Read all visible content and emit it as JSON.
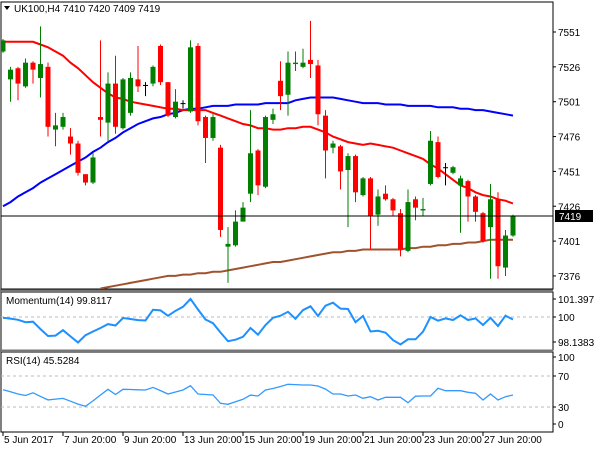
{
  "chart_data": [
    {
      "type": "candlestick",
      "title": "UK100,H4  7410 7420 7409 7419",
      "symbol": "UK100,H4",
      "ohlc_header": [
        "7410",
        "7420",
        "7409",
        "7419"
      ],
      "current_price_label": "7419",
      "current_price": 7419,
      "y_ticks": [
        "7551",
        "7526",
        "7501",
        "7476",
        "7451",
        "7426",
        "7401",
        "7376"
      ],
      "x_ticks": [
        "5 Jun 2017",
        "7 Jun 20:00",
        "9 Jun 20:00",
        "13 Jun 20:00",
        "15 Jun 20:00",
        "19 Jun 20:00",
        "21 Jun 20:00",
        "23 Jun 20:00",
        "27 Jun 20:00"
      ],
      "colors": {
        "bull": "#007f00",
        "bear": "#ff0000",
        "doji": "#000000",
        "ma_fast": "#ff0000",
        "ma_mid": "#0000ff",
        "ma_slow": "#a0522d"
      },
      "candles": [
        [
          7537,
          7546,
          7536,
          7545
        ],
        [
          7517,
          7526,
          7501,
          7524
        ],
        [
          7525,
          7526,
          7502,
          7514
        ],
        [
          7512,
          7532,
          7511,
          7529
        ],
        [
          7529,
          7530,
          7514,
          7524
        ],
        [
          7518,
          7555,
          7504,
          7528
        ],
        [
          7526,
          7529,
          7476,
          7483
        ],
        [
          7481,
          7493,
          7469,
          7484
        ],
        [
          7483,
          7493,
          7481,
          7490
        ],
        [
          7476,
          7482,
          7463,
          7471
        ],
        [
          7471,
          7473,
          7448,
          7450
        ],
        [
          7449,
          7449,
          7441,
          7443
        ],
        [
          7443,
          7464,
          7442,
          7461
        ],
        [
          7490,
          7545,
          7476,
          7488
        ],
        [
          7486,
          7522,
          7473,
          7514
        ],
        [
          7514,
          7534,
          7478,
          7483
        ],
        [
          7482,
          7518,
          7481,
          7517
        ],
        [
          7493,
          7522,
          7491,
          7518
        ],
        [
          7517,
          7541,
          7508,
          7512
        ],
        [
          7513,
          7515,
          7505,
          7513
        ],
        [
          7514,
          7527,
          7512,
          7526
        ],
        [
          7541,
          7542,
          7513,
          7515
        ],
        [
          7515,
          7515,
          7490,
          7491
        ],
        [
          7490,
          7510,
          7489,
          7501
        ],
        [
          7500,
          7502,
          7496,
          7500
        ],
        [
          7494,
          7545,
          7493,
          7540
        ],
        [
          7541,
          7543,
          7484,
          7487
        ],
        [
          7490,
          7491,
          7457,
          7475
        ],
        [
          7475,
          7492,
          7473,
          7490
        ],
        [
          7468,
          7470,
          7404,
          7409
        ],
        [
          7397,
          7411,
          7371,
          7399
        ],
        [
          7398,
          7423,
          7397,
          7415
        ],
        [
          7415,
          7429,
          7415,
          7425
        ],
        [
          7435,
          7495,
          7429,
          7464
        ],
        [
          7466,
          7467,
          7434,
          7441
        ],
        [
          7440,
          7491,
          7439,
          7490
        ],
        [
          7488,
          7496,
          7485,
          7492
        ],
        [
          7516,
          7530,
          7495,
          7505
        ],
        [
          7506,
          7537,
          7491,
          7529
        ],
        [
          7528,
          7537,
          7523,
          7529
        ],
        [
          7526,
          7539,
          7525,
          7529
        ],
        [
          7531,
          7559,
          7518,
          7528
        ],
        [
          7527,
          7531,
          7484,
          7492
        ],
        [
          7491,
          7495,
          7446,
          7466
        ],
        [
          7468,
          7473,
          7464,
          7471
        ],
        [
          7469,
          7470,
          7438,
          7451
        ],
        [
          7452,
          7464,
          7411,
          7462
        ],
        [
          7462,
          7463,
          7429,
          7436
        ],
        [
          7434,
          7447,
          7433,
          7446
        ],
        [
          7446,
          7447,
          7395,
          7419
        ],
        [
          7420,
          7438,
          7412,
          7433
        ],
        [
          7435,
          7441,
          7430,
          7431
        ],
        [
          7431,
          7432,
          7419,
          7423
        ],
        [
          7421,
          7424,
          7390,
          7395
        ],
        [
          7394,
          7438,
          7393,
          7429
        ],
        [
          7431,
          7433,
          7416,
          7425
        ],
        [
          7423,
          7432,
          7419,
          7424
        ],
        [
          7442,
          7480,
          7441,
          7473
        ],
        [
          7472,
          7476,
          7446,
          7447
        ],
        [
          7454,
          7457,
          7441,
          7454
        ],
        [
          7450,
          7455,
          7449,
          7454
        ],
        [
          7441,
          7448,
          7407,
          7446
        ],
        [
          7444,
          7445,
          7415,
          7433
        ],
        [
          7433,
          7434,
          7415,
          7422
        ],
        [
          7421,
          7422,
          7400,
          7401
        ],
        [
          7411,
          7442,
          7374,
          7431
        ],
        [
          7431,
          7436,
          7374,
          7383
        ],
        [
          7382,
          7409,
          7376,
          7405
        ],
        [
          7405,
          7420,
          7404,
          7419
        ]
      ],
      "ma_fast": [
        7544,
        7544,
        7544,
        7544,
        7544,
        7542,
        7540,
        7537,
        7534,
        7529,
        7525,
        7520,
        7515,
        7511,
        7507,
        7504,
        7503,
        7501,
        7500,
        7499,
        7498,
        7497,
        7496,
        7496,
        7495,
        7495,
        7495,
        7495,
        7493,
        7491,
        7489,
        7487,
        7485,
        7484,
        7482,
        7482,
        7481,
        7481,
        7482,
        7482,
        7483,
        7483,
        7481,
        7479,
        7476,
        7474,
        7472,
        7471,
        7470,
        7471,
        7470,
        7469,
        7468,
        7466,
        7464,
        7462,
        7460,
        7456,
        7453,
        7449,
        7445,
        7441,
        7439,
        7436,
        7434,
        7433,
        7431,
        7430,
        7428
      ],
      "ma_mid": [
        7426,
        7429,
        7433,
        7436,
        7439,
        7443,
        7446,
        7449,
        7452,
        7455,
        7458,
        7461,
        7465,
        7468,
        7472,
        7475,
        7479,
        7482,
        7485,
        7487,
        7489,
        7490,
        7492,
        7493,
        7495,
        7496,
        7496,
        7497,
        7498,
        7498,
        7498,
        7499,
        7499,
        7499,
        7499,
        7500,
        7500,
        7500,
        7500,
        7502,
        7503,
        7504,
        7504,
        7504,
        7504,
        7503,
        7502,
        7501,
        7500,
        7500,
        7500,
        7499,
        7499,
        7499,
        7498,
        7498,
        7498,
        7498,
        7497,
        7497,
        7497,
        7496,
        7496,
        7495,
        7495,
        7494,
        7493,
        7492,
        7491
      ],
      "ma_slow": [
        null,
        null,
        null,
        null,
        null,
        null,
        null,
        null,
        null,
        null,
        null,
        null,
        null,
        7367,
        7368,
        7369,
        7370,
        7371,
        7372,
        7373,
        7374,
        7375,
        7376,
        7376,
        7377,
        7377,
        7378,
        7378,
        7379,
        7379,
        7380,
        7381,
        7382,
        7383,
        7384,
        7385,
        7386,
        7386,
        7387,
        7388,
        7389,
        7390,
        7391,
        7392,
        7393,
        7393,
        7394,
        7394,
        7395,
        7395,
        7395,
        7395,
        7395,
        7395,
        7396,
        7396,
        7397,
        7397,
        7398,
        7398,
        7399,
        7399,
        7400,
        7400,
        7401,
        7402,
        7402,
        7402,
        7402
      ]
    },
    {
      "type": "line",
      "title": "Momentum(14) 99.8117",
      "y_ticks": [
        "101.397",
        "100",
        "98.1383"
      ],
      "reference_level": 100,
      "color": "#1e90ff",
      "values": [
        99.95,
        99.88,
        99.79,
        99.6,
        99.64,
        99.08,
        98.55,
        98.58,
        98.99,
        98.52,
        98.05,
        98.61,
        98.89,
        99.16,
        99.46,
        99.35,
        99.92,
        99.85,
        99.76,
        99.73,
        100.55,
        100.5,
        100.09,
        100.47,
        100.78,
        101.38,
        100.57,
        99.81,
        99.53,
        98.82,
        98.15,
        98.27,
        98.49,
        99.16,
        98.65,
        99.39,
        99.94,
        100.1,
        100.4,
        99.86,
        100.53,
        100.82,
        100.08,
        100.86,
        101.09,
        100.64,
        100.61,
        99.6,
        100.08,
        98.89,
        98.95,
        98.81,
        98.24,
        97.9,
        98.3,
        98.3,
        98.88,
        100.0,
        99.72,
        99.89,
        99.77,
        100.13,
        99.77,
        99.89,
        99.39,
        99.94,
        99.31,
        100.1,
        99.81
      ]
    },
    {
      "type": "line",
      "title": "RSI(14) 45.5284",
      "y_ticks": [
        "100",
        "70",
        "30",
        "0"
      ],
      "levels": [
        70,
        30
      ],
      "ylim": [
        0,
        100
      ],
      "color": "#3399ff",
      "values": [
        52.3,
        49.7,
        46.8,
        44.8,
        48.3,
        43.7,
        39.2,
        40.2,
        41.1,
        37.5,
        33.7,
        30.9,
        37.9,
        45.5,
        52.8,
        46.1,
        52.8,
        52.6,
        52.2,
        51.9,
        55.3,
        51.2,
        46.8,
        49.4,
        51.9,
        57.5,
        46.8,
        46.1,
        45.5,
        34.8,
        33.5,
        36.7,
        39.9,
        45.4,
        44.2,
        51.9,
        53.9,
        56.5,
        59.3,
        58.9,
        58.4,
        58.4,
        57.1,
        53.1,
        46.8,
        46.8,
        44.2,
        45.5,
        41.2,
        43.3,
        39.0,
        42.5,
        42.5,
        42.5,
        35.5,
        43.9,
        44.2,
        44.2,
        54.1,
        51.0,
        51.0,
        51.0,
        49.0,
        47.7,
        39.0,
        46.8,
        39.0,
        43.3,
        45.5
      ]
    }
  ]
}
